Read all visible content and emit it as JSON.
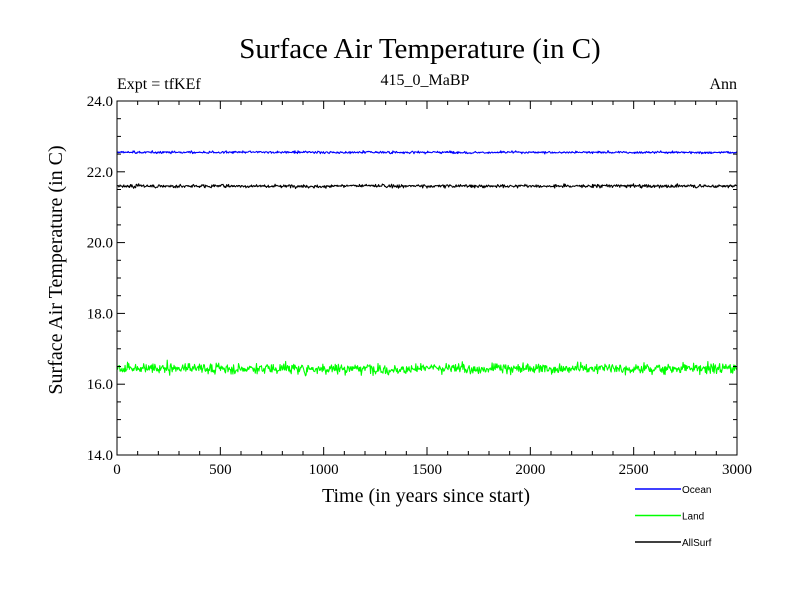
{
  "header": {
    "title": "Surface Air Temperature (in C)",
    "left": "Expt = tfKEf",
    "center": "415_0_MaBP",
    "right": "Ann"
  },
  "chart_data": {
    "type": "line",
    "title": "Surface Air Temperature (in C)",
    "xlabel": "Time (in years since start)",
    "ylabel": "Surface Air Temperature (in C)",
    "xlim": [
      0,
      3000
    ],
    "ylim": [
      14.0,
      24.0
    ],
    "x_ticks": [
      0,
      500,
      1000,
      1500,
      2000,
      2500,
      3000
    ],
    "x_tick_labels": [
      "0",
      "500",
      "1000",
      "1500",
      "2000",
      "2500",
      "3000"
    ],
    "y_ticks": [
      14.0,
      16.0,
      18.0,
      20.0,
      22.0,
      24.0
    ],
    "y_tick_labels": [
      "14.0",
      "16.0",
      "18.0",
      "20.0",
      "22.0",
      "24.0"
    ],
    "grid": false,
    "legend_position": "bottom-right, below plot",
    "series": [
      {
        "name": "Ocean",
        "color": "#0000ff",
        "mean": 22.55,
        "range_min": 22.4,
        "range_max": 22.7,
        "x_start": 0,
        "x_end": 3000
      },
      {
        "name": "Land",
        "color": "#00ff00",
        "mean": 16.45,
        "range_min": 15.85,
        "range_max": 17.2,
        "x_start": 0,
        "x_end": 3000
      },
      {
        "name": "AllSurf",
        "color": "#000000",
        "mean": 21.6,
        "range_min": 21.4,
        "range_max": 21.85,
        "x_start": 0,
        "x_end": 3000
      }
    ]
  }
}
